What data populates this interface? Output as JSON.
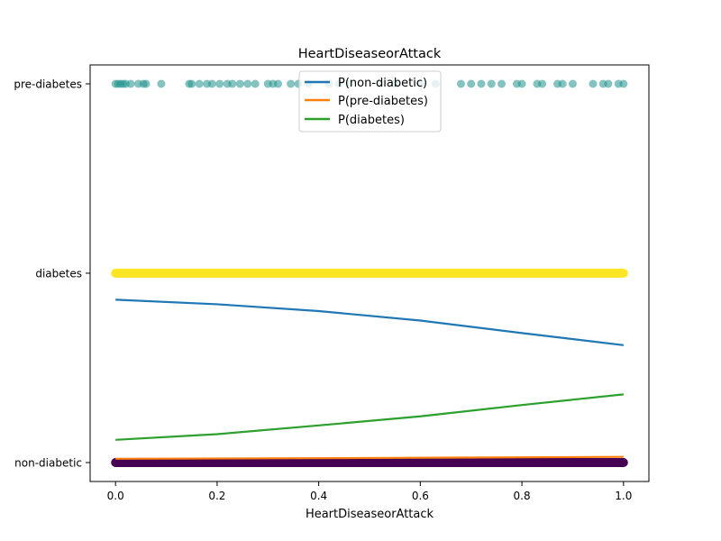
{
  "chart_data": {
    "type": "scatter",
    "title": "HeartDiseaseorAttack",
    "xlabel": "HeartDiseaseorAttack",
    "ylabel": "",
    "xlim": [
      -0.05,
      1.05
    ],
    "ylim": [
      -0.05,
      1.05
    ],
    "x_ticks": [
      "0.0",
      "0.2",
      "0.4",
      "0.6",
      "0.8",
      "1.0"
    ],
    "y_ticks": [
      {
        "label": "non-diabetic",
        "value": 0
      },
      {
        "label": "diabetes",
        "value": 0.5
      },
      {
        "label": "pre-diabetes",
        "value": 1
      }
    ],
    "grid": false,
    "legend_position": "top-center",
    "scatter_groups": [
      {
        "class": "pre-diabetes",
        "y": 1,
        "color": "#21918c",
        "alpha": 0.55,
        "x": [
          0.0,
          0.005,
          0.01,
          0.015,
          0.02,
          0.03,
          0.045,
          0.055,
          0.06,
          0.09,
          0.145,
          0.15,
          0.165,
          0.18,
          0.19,
          0.205,
          0.22,
          0.23,
          0.245,
          0.26,
          0.275,
          0.3,
          0.31,
          0.32,
          0.345,
          0.36,
          0.38,
          0.42,
          0.44,
          0.46,
          0.52,
          0.55,
          0.6,
          0.63,
          0.68,
          0.7,
          0.72,
          0.74,
          0.76,
          0.79,
          0.8,
          0.83,
          0.84,
          0.87,
          0.88,
          0.9,
          0.94,
          0.96,
          0.97,
          0.99,
          1.0
        ]
      },
      {
        "class": "diabetes",
        "y": 0.5,
        "color": "#fde725",
        "alpha": 1,
        "dense": true,
        "x_from": 0.0,
        "x_to": 1.0
      },
      {
        "class": "non-diabetic",
        "y": 0,
        "color": "#440154",
        "alpha": 1,
        "dense": true,
        "x_from": 0.0,
        "x_to": 1.0
      }
    ],
    "series": [
      {
        "name": "P(non-diabetic)",
        "color": "#1f77b4",
        "x": [
          0,
          0.2,
          0.4,
          0.6,
          0.8,
          1.0
        ],
        "y": [
          0.43,
          0.418,
          0.4,
          0.375,
          0.342,
          0.31
        ]
      },
      {
        "name": "P(pre-diabetes)",
        "color": "#ff7f0e",
        "x": [
          0,
          0.5,
          1.0
        ],
        "y": [
          0.01,
          0.012,
          0.015
        ]
      },
      {
        "name": "P(diabetes)",
        "color": "#2ca02c",
        "x": [
          0,
          0.2,
          0.4,
          0.6,
          0.8,
          1.0
        ],
        "y": [
          0.06,
          0.075,
          0.098,
          0.122,
          0.152,
          0.18
        ]
      }
    ]
  }
}
